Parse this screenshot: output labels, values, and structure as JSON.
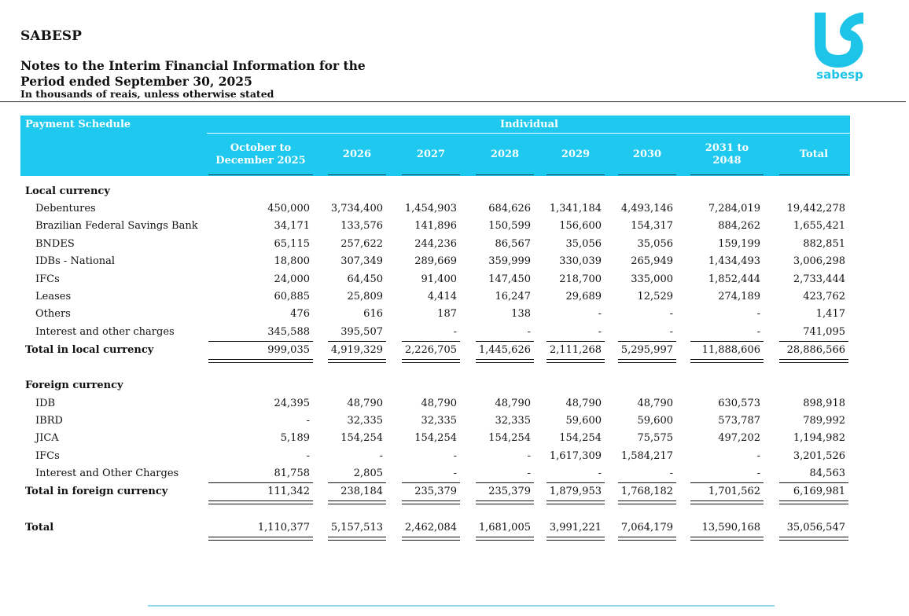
{
  "header": {
    "company": "SABESP",
    "title_line1": "Notes to the Interim Financial Information for the",
    "title_line2": "Period ended September 30, 2025",
    "units": "In thousands of reais, unless otherwise stated"
  },
  "logo": {
    "text": "sabesp",
    "color": "#1ec4e8"
  },
  "table": {
    "caption": "Payment Schedule",
    "group_label": "Individual",
    "header_color": "#1ec8ef",
    "columns": [
      "October to December 2025",
      "2026",
      "2027",
      "2028",
      "2029",
      "2030",
      "2031 to 2048",
      "Total"
    ],
    "local": {
      "title": "Local currency",
      "rows": [
        {
          "label": "Debentures",
          "values": [
            "450,000",
            "3,734,400",
            "1,454,903",
            "684,626",
            "1,341,184",
            "4,493,146",
            "7,284,019",
            "19,442,278"
          ]
        },
        {
          "label": "Brazilian Federal Savings Bank",
          "values": [
            "34,171",
            "133,576",
            "141,896",
            "150,599",
            "156,600",
            "154,317",
            "884,262",
            "1,655,421"
          ]
        },
        {
          "label": "BNDES",
          "values": [
            "65,115",
            "257,622",
            "244,236",
            "86,567",
            "35,056",
            "35,056",
            "159,199",
            "882,851"
          ]
        },
        {
          "label": "IDBs - National",
          "values": [
            "18,800",
            "307,349",
            "289,669",
            "359,999",
            "330,039",
            "265,949",
            "1,434,493",
            "3,006,298"
          ]
        },
        {
          "label": "IFCs",
          "values": [
            "24,000",
            "64,450",
            "91,400",
            "147,450",
            "218,700",
            "335,000",
            "1,852,444",
            "2,733,444"
          ]
        },
        {
          "label": "Leases",
          "values": [
            "60,885",
            "25,809",
            "4,414",
            "16,247",
            "29,689",
            "12,529",
            "274,189",
            "423,762"
          ]
        },
        {
          "label": "Others",
          "values": [
            "476",
            "616",
            "187",
            "138",
            "-",
            "-",
            "-",
            "1,417"
          ]
        },
        {
          "label": "Interest and other charges",
          "values": [
            "345,588",
            "395,507",
            "-",
            "-",
            "-",
            "-",
            "-",
            "741,095"
          ]
        }
      ],
      "total": {
        "label": "Total in local currency",
        "values": [
          "999,035",
          "4,919,329",
          "2,226,705",
          "1,445,626",
          "2,111,268",
          "5,295,997",
          "11,888,606",
          "28,886,566"
        ]
      }
    },
    "foreign": {
      "title": "Foreign currency",
      "rows": [
        {
          "label": "IDB",
          "values": [
            "24,395",
            "48,790",
            "48,790",
            "48,790",
            "48,790",
            "48,790",
            "630,573",
            "898,918"
          ]
        },
        {
          "label": "IBRD",
          "values": [
            "-",
            "32,335",
            "32,335",
            "32,335",
            "59,600",
            "59,600",
            "573,787",
            "789,992"
          ]
        },
        {
          "label": "JICA",
          "values": [
            "5,189",
            "154,254",
            "154,254",
            "154,254",
            "154,254",
            "75,575",
            "497,202",
            "1,194,982"
          ]
        },
        {
          "label": "IFCs",
          "values": [
            "-",
            "-",
            "-",
            "-",
            "1,617,309",
            "1,584,217",
            "-",
            "3,201,526"
          ]
        },
        {
          "label": "Interest and Other Charges",
          "values": [
            "81,758",
            "2,805",
            "-",
            "-",
            "-",
            "-",
            "-",
            "84,563"
          ]
        }
      ],
      "total": {
        "label": "Total in foreign currency",
        "values": [
          "111,342",
          "238,184",
          "235,379",
          "235,379",
          "1,879,953",
          "1,768,182",
          "1,701,562",
          "6,169,981"
        ]
      }
    },
    "grand_total": {
      "label": "Total",
      "values": [
        "1,110,377",
        "5,157,513",
        "2,462,084",
        "1,681,005",
        "3,991,221",
        "7,064,179",
        "13,590,168",
        "35,056,547"
      ]
    }
  }
}
